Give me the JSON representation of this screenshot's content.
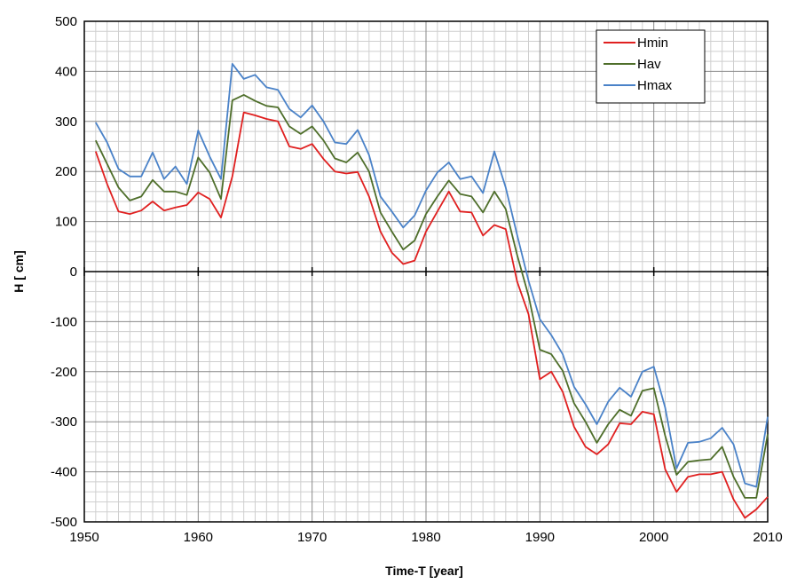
{
  "chart_data": {
    "type": "line",
    "title": "",
    "xlabel": "Time-T [year]",
    "ylabel": "H [ cm]",
    "xlim": [
      1950,
      2010
    ],
    "ylim": [
      -500,
      500
    ],
    "x_ticks": [
      "1950",
      "1960",
      "1970",
      "1980",
      "1990",
      "2000",
      "2010"
    ],
    "y_ticks": [
      "500",
      "400",
      "300",
      "200",
      "100",
      "0",
      "-100",
      "-200",
      "-300",
      "-400",
      "-500"
    ],
    "grid": true,
    "legend_position": "top-right",
    "x": [
      1951,
      1952,
      1953,
      1954,
      1955,
      1956,
      1957,
      1958,
      1959,
      1960,
      1961,
      1962,
      1963,
      1964,
      1965,
      1966,
      1967,
      1968,
      1969,
      1970,
      1971,
      1972,
      1973,
      1974,
      1975,
      1976,
      1977,
      1978,
      1979,
      1980,
      1981,
      1982,
      1983,
      1984,
      1985,
      1986,
      1987,
      1988,
      1989,
      1990,
      1991,
      1992,
      1993,
      1994,
      1995,
      1996,
      1997,
      1998,
      1999,
      2000,
      2001,
      2002,
      2003,
      2004,
      2005,
      2006,
      2007,
      2008,
      2009,
      2010
    ],
    "series": [
      {
        "name": "Hmin",
        "color": "#e02020",
        "values": [
          240,
          175,
          120,
          115,
          122,
          140,
          122,
          128,
          133,
          158,
          145,
          108,
          190,
          318,
          312,
          305,
          300,
          250,
          245,
          255,
          225,
          200,
          196,
          199,
          150,
          80,
          38,
          15,
          22,
          80,
          120,
          160,
          120,
          118,
          72,
          93,
          85,
          -20,
          -85,
          -215,
          -200,
          -240,
          -310,
          -350,
          -365,
          -345,
          -303,
          -305,
          -280,
          -285,
          -395,
          -440,
          -410,
          -405,
          -405,
          -400,
          -455,
          -492,
          -475,
          -450
        ]
      },
      {
        "name": "Hav",
        "color": "#4e6e2a",
        "values": [
          262,
          215,
          168,
          142,
          150,
          183,
          160,
          160,
          153,
          228,
          198,
          145,
          342,
          353,
          341,
          331,
          328,
          290,
          275,
          290,
          262,
          226,
          218,
          238,
          200,
          118,
          80,
          44,
          62,
          115,
          150,
          182,
          155,
          150,
          118,
          160,
          125,
          33,
          -48,
          -156,
          -165,
          -198,
          -263,
          -300,
          -342,
          -305,
          -276,
          -288,
          -238,
          -233,
          -328,
          -406,
          -380,
          -377,
          -375,
          -350,
          -410,
          -452,
          -452,
          -325
        ]
      },
      {
        "name": "Hmax",
        "color": "#4a82c8",
        "values": [
          298,
          258,
          205,
          190,
          190,
          238,
          185,
          210,
          175,
          282,
          230,
          185,
          415,
          385,
          393,
          368,
          363,
          325,
          308,
          332,
          300,
          258,
          255,
          283,
          233,
          150,
          120,
          88,
          112,
          162,
          198,
          218,
          185,
          190,
          157,
          240,
          168,
          73,
          -18,
          -95,
          -127,
          -165,
          -230,
          -265,
          -305,
          -260,
          -232,
          -250,
          -200,
          -190,
          -272,
          -393,
          -342,
          -340,
          -333,
          -312,
          -345,
          -423,
          -430,
          -290
        ]
      }
    ]
  }
}
